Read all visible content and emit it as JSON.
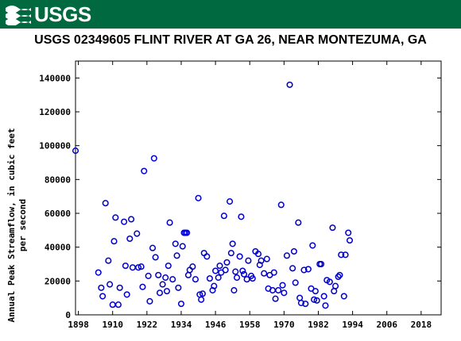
{
  "header": {
    "logo_text": "USGS",
    "logo_icon": "usgs-wave-icon",
    "brand_color": "#00693f"
  },
  "chart_data": {
    "type": "scatter",
    "title": "USGS 02349605 FLINT RIVER AT GA 26, NEAR MONTEZUMA, GA",
    "xlabel": "",
    "ylabel_lines": [
      "Annual Peak Streamflow, in cubic feet",
      "per second"
    ],
    "xlim": [
      1897,
      2025
    ],
    "ylim": [
      0,
      150000
    ],
    "xticks": [
      1898,
      1910,
      1922,
      1934,
      1946,
      1958,
      1970,
      1982,
      1994,
      2006,
      2018
    ],
    "yticks": [
      0,
      20000,
      40000,
      60000,
      80000,
      100000,
      120000,
      140000
    ],
    "grid": false,
    "marker_color": "#0000cc",
    "series": [
      {
        "points": [
          [
            1897,
            97000
          ],
          [
            1905,
            25000
          ],
          [
            1906,
            16000
          ],
          [
            1906.5,
            11000
          ],
          [
            1907.5,
            66000
          ],
          [
            1908.5,
            32000
          ],
          [
            1909,
            18000
          ],
          [
            1910,
            6000
          ],
          [
            1910.5,
            43500
          ],
          [
            1911,
            57500
          ],
          [
            1912,
            6000
          ],
          [
            1912.5,
            16000
          ],
          [
            1914,
            55000
          ],
          [
            1914.5,
            29000
          ],
          [
            1915,
            12000
          ],
          [
            1916,
            45000
          ],
          [
            1916.5,
            56500
          ],
          [
            1917,
            28000
          ],
          [
            1918.5,
            48000
          ],
          [
            1919,
            28000
          ],
          [
            1920,
            28500
          ],
          [
            1920.5,
            16500
          ],
          [
            1921,
            85000
          ],
          [
            1922.5,
            23000
          ],
          [
            1923,
            8000
          ],
          [
            1924,
            39500
          ],
          [
            1924.5,
            92500
          ],
          [
            1925,
            34000
          ],
          [
            1926,
            23500
          ],
          [
            1926.5,
            13000
          ],
          [
            1927.5,
            18000
          ],
          [
            1928.5,
            22000
          ],
          [
            1929,
            14000
          ],
          [
            1929.5,
            29000
          ],
          [
            1930,
            54500
          ],
          [
            1931,
            21000
          ],
          [
            1932,
            42000
          ],
          [
            1932.5,
            35000
          ],
          [
            1933,
            16000
          ],
          [
            1934,
            6500
          ],
          [
            1934.5,
            40500
          ],
          [
            1935,
            48500
          ],
          [
            1935.5,
            48500
          ],
          [
            1936,
            48500
          ],
          [
            1936.5,
            23500
          ],
          [
            1937,
            26500
          ],
          [
            1938,
            28500
          ],
          [
            1939,
            21000
          ],
          [
            1940,
            69000
          ],
          [
            1940.5,
            12000
          ],
          [
            1941,
            9000
          ],
          [
            1941.5,
            12500
          ],
          [
            1942,
            36500
          ],
          [
            1943,
            34500
          ],
          [
            1944,
            21500
          ],
          [
            1945,
            14500
          ],
          [
            1945.5,
            17000
          ],
          [
            1946,
            26000
          ],
          [
            1947,
            22000
          ],
          [
            1947.5,
            29000
          ],
          [
            1948,
            25000
          ],
          [
            1949,
            58500
          ],
          [
            1949.5,
            26500
          ],
          [
            1950,
            31000
          ],
          [
            1951,
            67000
          ],
          [
            1951.5,
            36500
          ],
          [
            1952,
            42000
          ],
          [
            1952.5,
            14500
          ],
          [
            1953,
            25500
          ],
          [
            1953.5,
            22000
          ],
          [
            1954.5,
            34500
          ],
          [
            1955,
            58000
          ],
          [
            1955.5,
            26000
          ],
          [
            1956,
            24000
          ],
          [
            1957,
            21000
          ],
          [
            1957.5,
            32000
          ],
          [
            1958.5,
            23000
          ],
          [
            1959,
            21500
          ],
          [
            1960,
            37500
          ],
          [
            1961,
            36000
          ],
          [
            1961.5,
            29500
          ],
          [
            1962,
            32000
          ],
          [
            1963,
            24500
          ],
          [
            1964,
            33000
          ],
          [
            1964.5,
            15500
          ],
          [
            1965,
            23500
          ],
          [
            1966,
            14500
          ],
          [
            1966.5,
            25000
          ],
          [
            1967,
            9500
          ],
          [
            1968,
            14500
          ],
          [
            1969,
            65000
          ],
          [
            1969.5,
            17500
          ],
          [
            1970,
            13000
          ],
          [
            1971,
            35000
          ],
          [
            1972,
            136000
          ],
          [
            1973,
            27500
          ],
          [
            1973.5,
            37500
          ],
          [
            1974,
            19000
          ],
          [
            1975,
            54500
          ],
          [
            1975.5,
            10000
          ],
          [
            1976,
            7000
          ],
          [
            1977,
            26500
          ],
          [
            1977.5,
            6500
          ],
          [
            1978.5,
            27000
          ],
          [
            1979.5,
            15500
          ],
          [
            1980,
            41000
          ],
          [
            1980.5,
            9000
          ],
          [
            1981,
            14000
          ],
          [
            1981.5,
            8500
          ],
          [
            1982.5,
            30000
          ],
          [
            1983,
            30000
          ],
          [
            1984,
            11000
          ],
          [
            1984.5,
            5500
          ],
          [
            1985,
            20500
          ],
          [
            1986,
            19500
          ],
          [
            1987,
            51500
          ],
          [
            1987.5,
            14000
          ],
          [
            1988,
            17000
          ],
          [
            1989,
            22500
          ],
          [
            1989.5,
            23500
          ],
          [
            1990,
            35500
          ],
          [
            1991,
            11000
          ],
          [
            1991.5,
            35500
          ],
          [
            1992.5,
            48500
          ],
          [
            1993,
            44000
          ]
        ]
      }
    ]
  }
}
